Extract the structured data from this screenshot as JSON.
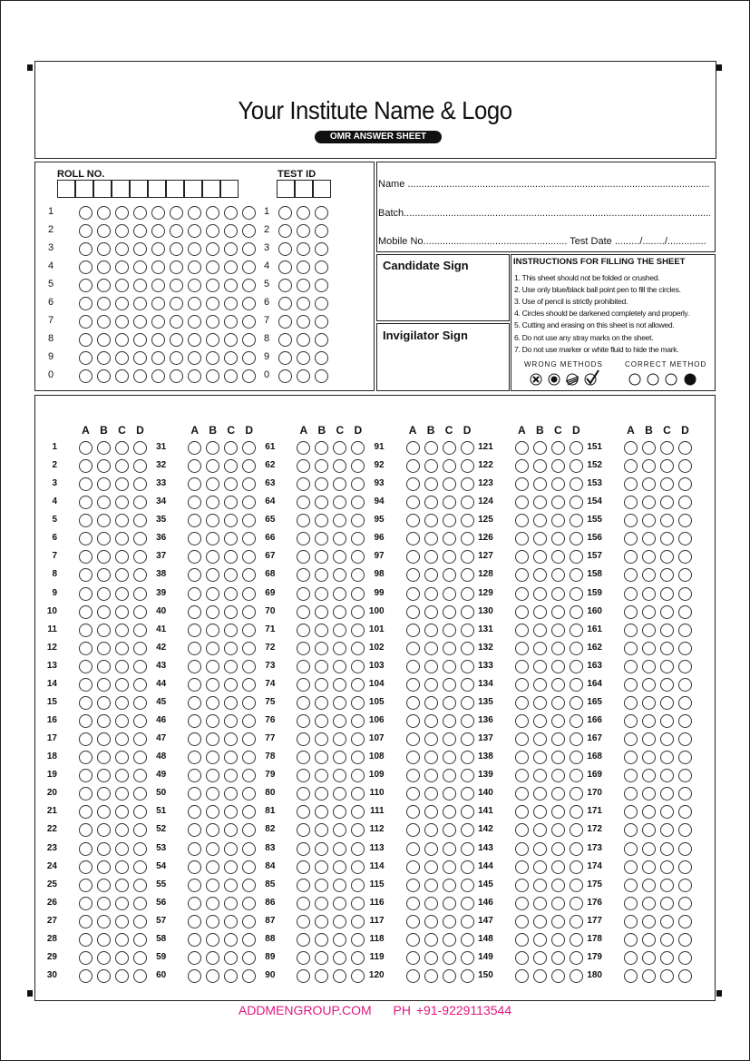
{
  "header": {
    "title": "Your Institute Name & Logo",
    "badge": "OMR ANSWER SHEET"
  },
  "roll": {
    "label": "ROLL NO.",
    "columns": 10,
    "digits": [
      "1",
      "2",
      "3",
      "4",
      "5",
      "6",
      "7",
      "8",
      "9",
      "0"
    ]
  },
  "test_id": {
    "label": "TEST ID",
    "columns": 3,
    "digits": [
      "1",
      "2",
      "3",
      "4",
      "5",
      "6",
      "7",
      "8",
      "9",
      "0"
    ]
  },
  "info": {
    "name": "Name ...............................................................................................................",
    "batch": "Batch..................................................................................................................",
    "mobile": "Mobile No.................................................... Test Date ........./......../.............."
  },
  "signs": {
    "candidate": "Candidate Sign",
    "invigilator": "Invigilator Sign"
  },
  "instructions": {
    "title": "INSTRUCTIONS FOR FILLING THE SHEET",
    "items": [
      "1.  This sheet should not be folded or crushed.",
      "2.  Use only blue/black ball point pen to fill the circles.",
      "3.  Use of pencil is strictly prohibited.",
      "4.  Circles should be darkened completely and properly.",
      "5.  Cutting and erasing on this sheet is not allowed.",
      "6.  Do not use any stray marks on the sheet.",
      "7.  Do not use marker or white fluid to hide the mark."
    ],
    "wrong_label": "WRONG METHODS",
    "correct_label": "CORRECT METHOD"
  },
  "answers": {
    "options": [
      "A",
      "B",
      "C",
      "D"
    ],
    "total_questions": 180,
    "per_column": 30
  },
  "footer": {
    "website": "ADDMENGROUP.COM",
    "phone": "PH +91-9229113544",
    "color": "#e0187f"
  }
}
